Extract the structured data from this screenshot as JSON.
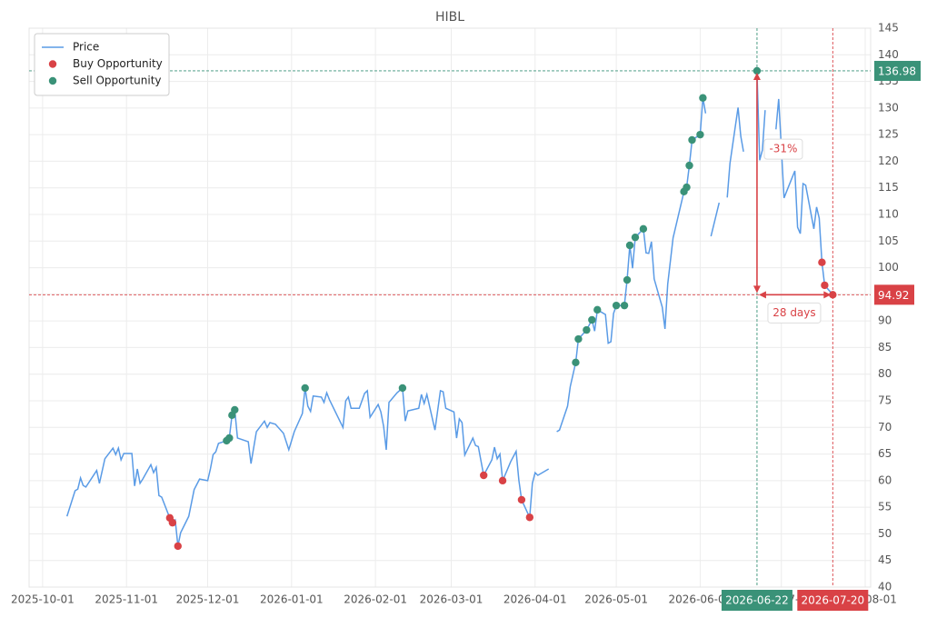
{
  "chart_data": {
    "type": "line",
    "title": "HIBL",
    "xlim": [
      "2025-09-26",
      "2026-08-03"
    ],
    "xticks": [
      "2025-10-01",
      "2025-11-01",
      "2025-12-01",
      "2026-01-01",
      "2026-02-01",
      "2026-03-01",
      "2026-04-01",
      "2026-05-01",
      "2026-06-01",
      "2026-07-01",
      "2026-08-01"
    ],
    "ylim": [
      40,
      145
    ],
    "yticks": [
      40,
      45,
      50,
      55,
      60,
      65,
      70,
      75,
      80,
      85,
      90,
      95,
      100,
      105,
      110,
      115,
      120,
      125,
      130,
      135,
      140,
      145
    ],
    "grid": true,
    "legend": "upper left",
    "series": [
      {
        "name": "Price",
        "color": "#5a9be6",
        "marker": "line",
        "x": [
          "2025-10-10",
          "2025-10-13",
          "2025-10-14",
          "2025-10-15",
          "2025-10-16",
          "2025-10-17",
          "2025-10-21",
          "2025-10-22",
          "2025-10-24",
          "2025-10-27",
          "2025-10-28",
          "2025-10-29",
          "2025-10-30",
          "2025-10-31",
          "2025-11-03",
          "2025-11-04",
          "2025-11-05",
          "2025-11-06",
          "2025-11-07",
          "2025-11-10",
          "2025-11-11",
          "2025-11-12",
          "2025-11-13",
          "2025-11-14",
          "2025-11-17",
          "2025-11-18",
          "2025-11-19",
          "2025-11-20",
          "2025-11-21",
          "2025-11-24",
          "2025-11-26",
          "2025-11-28",
          "2025-12-01",
          "2025-12-02",
          "2025-12-03",
          "2025-12-04",
          "2025-12-05",
          "2025-12-08",
          "2025-12-09",
          "2025-12-10",
          "2025-12-11",
          "2025-12-12",
          "2025-12-16",
          "2025-12-17",
          "2025-12-19",
          "2025-12-22",
          "2025-12-23",
          "2025-12-24",
          "2025-12-26",
          "2025-12-29",
          "2025-12-31",
          "2026-01-02",
          "2026-01-05",
          "2026-01-06",
          "2026-01-07",
          "2026-01-08",
          "2026-01-09",
          "2026-01-12",
          "2026-01-13",
          "2026-01-14",
          "2026-01-15",
          "2026-01-20",
          "2026-01-21",
          "2026-01-22",
          "2026-01-23",
          "2026-01-26",
          "2026-01-28",
          "2026-01-29",
          "2026-01-30",
          "2026-02-02",
          "2026-02-03",
          "2026-02-04",
          "2026-02-05",
          "2026-02-06",
          "2026-02-09",
          "2026-02-11",
          "2026-02-12",
          "2026-02-13",
          "2026-02-17",
          "2026-02-18",
          "2026-02-19",
          "2026-02-20",
          "2026-02-23",
          "2026-02-25",
          "2026-02-26",
          "2026-02-27",
          "2026-03-02",
          "2026-03-03",
          "2026-03-04",
          "2026-03-05",
          "2026-03-06",
          "2026-03-09",
          "2026-03-10",
          "2026-03-11",
          "2026-03-13",
          "2026-03-16",
          "2026-03-17",
          "2026-03-18",
          "2026-03-19",
          "2026-03-20",
          "2026-03-23",
          "2026-03-25",
          "2026-03-26",
          "2026-03-27",
          "2026-03-30",
          "2026-03-31",
          "2026-04-01",
          "2026-04-02",
          "2026-04-06",
          "2026-04-07",
          "2026-04-09",
          "2026-04-10",
          "2026-04-13",
          "2026-04-14",
          "2026-04-16",
          "2026-04-17",
          "2026-04-20",
          "2026-04-22",
          "2026-04-23",
          "2026-04-24",
          "2026-04-27",
          "2026-04-28",
          "2026-04-29",
          "2026-04-30",
          "2026-05-01",
          "2026-05-04",
          "2026-05-05",
          "2026-05-06",
          "2026-05-07",
          "2026-05-08",
          "2026-05-11",
          "2026-05-12",
          "2026-05-13",
          "2026-05-14",
          "2026-05-15",
          "2026-05-18",
          "2026-05-19",
          "2026-05-20",
          "2026-05-22",
          "2026-05-26",
          "2026-05-27",
          "2026-05-28",
          "2026-05-29",
          "2026-06-01",
          "2026-06-02",
          "2026-06-03",
          "2026-06-04",
          "2026-06-05",
          "2026-06-08",
          "2026-06-10",
          "2026-06-11",
          "2026-06-12",
          "2026-06-15",
          "2026-06-16",
          "2026-06-17",
          "2026-06-18",
          "2026-06-22",
          "2026-06-23",
          "2026-06-24",
          "2026-06-25",
          "2026-06-26",
          "2026-06-29",
          "2026-06-30",
          "2026-07-02",
          "2026-07-03",
          "2026-07-06",
          "2026-07-07",
          "2026-07-08",
          "2026-07-09",
          "2026-07-10",
          "2026-07-13",
          "2026-07-14",
          "2026-07-15",
          "2026-07-16",
          "2026-07-17",
          "2026-07-20"
        ],
        "values": [
          53.3,
          58.1,
          58.4,
          60.5,
          59.1,
          58.8,
          61.9,
          59.5,
          64.1,
          66.1,
          64.9,
          66.1,
          63.9,
          65.1,
          65.1,
          59.0,
          62.2,
          59.5,
          60.3,
          63.0,
          61.5,
          62.5,
          57.2,
          56.9,
          53.0,
          52.1,
          52.6,
          47.7,
          50.2,
          53.3,
          58.3,
          60.3,
          60.0,
          62.2,
          64.9,
          65.4,
          67.0,
          67.5,
          68.0,
          72.3,
          73.3,
          68.0,
          67.3,
          63.2,
          69.2,
          71.2,
          70.0,
          70.9,
          70.6,
          68.9,
          65.8,
          69.2,
          72.6,
          77.4,
          74.0,
          73.0,
          75.9,
          75.7,
          74.7,
          76.5,
          75.2,
          70.0,
          75.0,
          75.7,
          73.6,
          73.6,
          76.4,
          76.9,
          71.9,
          74.3,
          72.9,
          70.2,
          65.8,
          74.7,
          76.5,
          77.4,
          71.2,
          73.1,
          73.6,
          76.2,
          74.5,
          76.2,
          69.5,
          76.9,
          76.7,
          73.6,
          72.9,
          68.0,
          71.6,
          70.9,
          64.8,
          68.0,
          66.6,
          66.4,
          61.0,
          63.9,
          66.3,
          64.1,
          65.0,
          60.0,
          63.6,
          65.5,
          60.1,
          56.4,
          53.1,
          59.5,
          61.5,
          61.0,
          62.2,
          null,
          69.2,
          69.5,
          74.0,
          77.7,
          82.2,
          86.6,
          88.3,
          90.2,
          88.1,
          92.1,
          91.2,
          85.8,
          86.1,
          91.4,
          92.9,
          92.9,
          97.7,
          104.2,
          99.9,
          105.7,
          107.3,
          102.8,
          102.7,
          104.9,
          97.9,
          92.6,
          88.5,
          96.9,
          105.6,
          114.3,
          115.1,
          119.2,
          124.0,
          125.0,
          131.9,
          129.0,
          null,
          105.9,
          112.2,
          null,
          113.2,
          119.6,
          130.1,
          124.7,
          121.8,
          null,
          136.98,
          120.2,
          122.1,
          129.6,
          null,
          126.0,
          131.7,
          113.1,
          114.4,
          118.2,
          107.6,
          106.4,
          115.8,
          115.5,
          107.3,
          111.4,
          109.3,
          101.0,
          96.7,
          94.92
        ]
      },
      {
        "name": "Buy Opportunity",
        "color": "#d94246",
        "marker": "dot",
        "x": [
          "2025-11-17",
          "2025-11-18",
          "2025-11-20",
          "2026-03-13",
          "2026-03-20",
          "2026-03-27",
          "2026-03-30",
          "2026-07-16",
          "2026-07-17",
          "2026-07-20"
        ],
        "values": [
          53.0,
          52.1,
          47.7,
          61.0,
          60.0,
          56.4,
          53.1,
          101.0,
          96.7,
          94.92
        ]
      },
      {
        "name": "Sell Opportunity",
        "color": "#3a9278",
        "marker": "dot",
        "x": [
          "2025-12-08",
          "2025-12-09",
          "2025-12-10",
          "2025-12-11",
          "2026-01-06",
          "2026-02-11",
          "2026-04-16",
          "2026-04-17",
          "2026-04-20",
          "2026-04-22",
          "2026-04-24",
          "2026-05-01",
          "2026-05-04",
          "2026-05-05",
          "2026-05-06",
          "2026-05-08",
          "2026-05-11",
          "2026-05-26",
          "2026-05-27",
          "2026-05-28",
          "2026-05-29",
          "2026-06-01",
          "2026-06-02",
          "2026-06-22"
        ],
        "values": [
          67.5,
          68.0,
          72.3,
          73.3,
          77.4,
          77.4,
          82.2,
          86.6,
          88.3,
          90.2,
          92.1,
          92.9,
          92.9,
          97.7,
          104.2,
          105.7,
          107.3,
          114.3,
          115.1,
          119.2,
          124.0,
          125.0,
          131.9,
          136.98
        ]
      }
    ],
    "reference_lines": [
      {
        "orientation": "horizontal",
        "value": 136.98,
        "color": "#3a9278"
      },
      {
        "orientation": "horizontal",
        "value": 94.92,
        "color": "#d94246"
      },
      {
        "orientation": "vertical",
        "x": "2026-06-22",
        "color": "#3a9278"
      },
      {
        "orientation": "vertical",
        "x": "2026-07-20",
        "color": "#d94246"
      }
    ],
    "annotations": [
      {
        "text": "-31%"
      },
      {
        "text": "28 days"
      }
    ]
  }
}
